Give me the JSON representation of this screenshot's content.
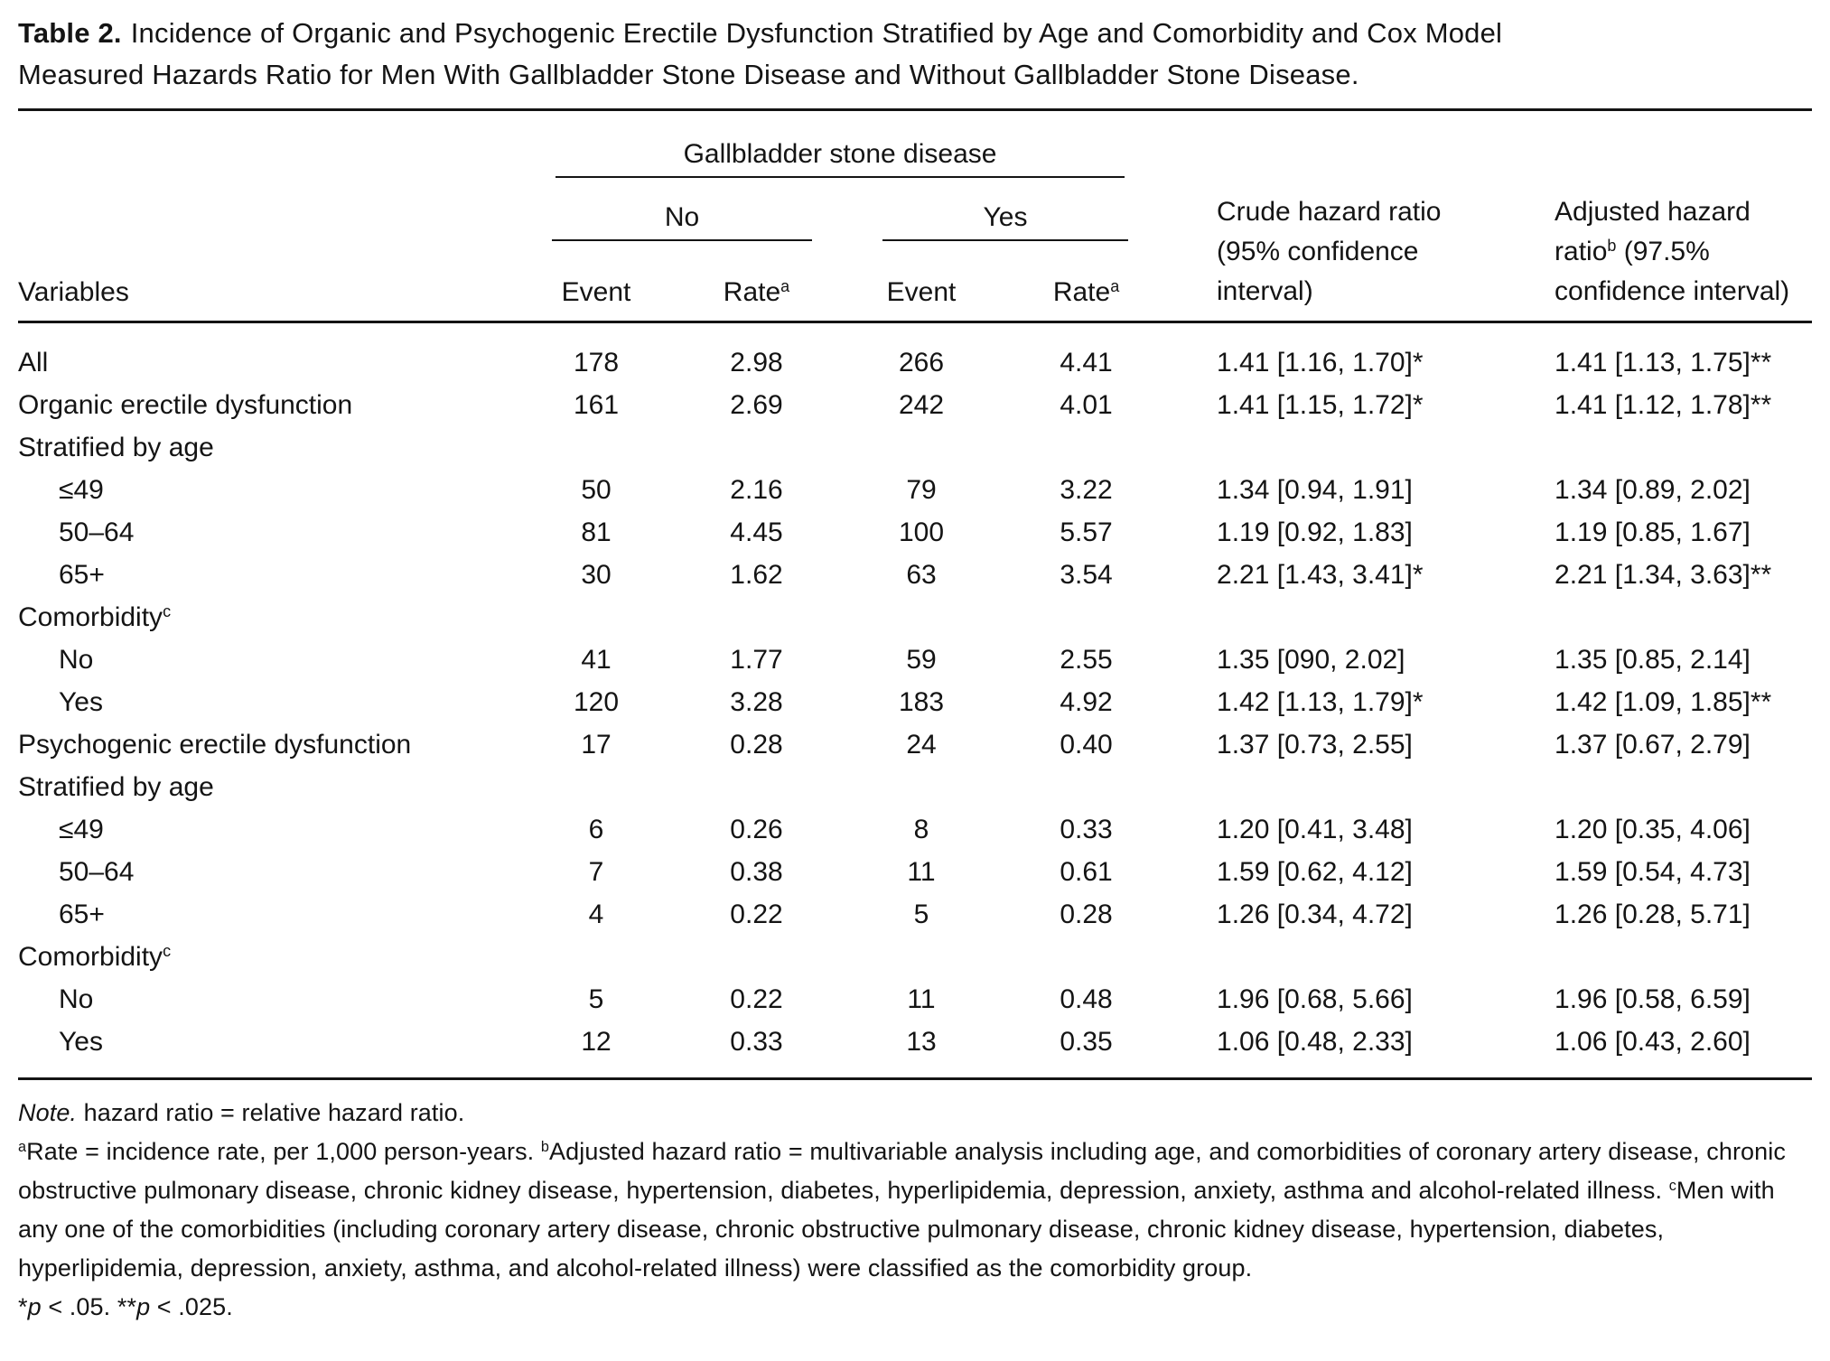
{
  "title": {
    "label": "Table 2.",
    "lines": [
      "Incidence of Organic and Psychogenic Erectile Dysfunction Stratified by Age and Comorbidity and Cox Model",
      "Measured Hazards Ratio for Men With Gallbladder Stone Disease and Without Gallbladder Stone Disease."
    ]
  },
  "table": {
    "group_header": "Gallbladder stone disease",
    "subgroups": [
      "No",
      "Yes"
    ],
    "col_headers": {
      "variables": "Variables",
      "event": "Event",
      "rate": "Rate",
      "rate_sup": "a"
    },
    "crude_header": {
      "line1": "Crude hazard ratio",
      "line2": "(95% confidence",
      "line3": "interval)"
    },
    "adjusted_header": {
      "line1": "Adjusted hazard",
      "line2_pre": "ratio",
      "line2_sup": "b",
      "line2_post": " (97.5%",
      "line3": "confidence interval)"
    },
    "rows": [
      {
        "label": "All",
        "no_event": "178",
        "no_rate": "2.98",
        "yes_event": "266",
        "yes_rate": "4.41",
        "crude": "1.41 [1.16, 1.70]*",
        "adjusted": "1.41 [1.13, 1.75]**"
      },
      {
        "label": "Organic erectile dysfunction",
        "no_event": "161",
        "no_rate": "2.69",
        "yes_event": "242",
        "yes_rate": "4.01",
        "crude": "1.41 [1.15, 1.72]*",
        "adjusted": "1.41 [1.12, 1.78]**"
      },
      {
        "label": "Stratified by age",
        "section": true
      },
      {
        "label": "≤49",
        "indent": true,
        "no_event": "50",
        "no_rate": "2.16",
        "yes_event": "79",
        "yes_rate": "3.22",
        "crude": "1.34 [0.94, 1.91]",
        "adjusted": "1.34 [0.89, 2.02]"
      },
      {
        "label": "50–64",
        "indent": true,
        "no_event": "81",
        "no_rate": "4.45",
        "yes_event": "100",
        "yes_rate": "5.57",
        "crude": "1.19 [0.92, 1.83]",
        "adjusted": "1.19 [0.85, 1.67]"
      },
      {
        "label": "65+",
        "indent": true,
        "no_event": "30",
        "no_rate": "1.62",
        "yes_event": "63",
        "yes_rate": "3.54",
        "crude": "2.21 [1.43, 3.41]*",
        "adjusted": "2.21 [1.34, 3.63]**"
      },
      {
        "label": "Comorbidity",
        "sup": "c",
        "section": true
      },
      {
        "label": "No",
        "indent": true,
        "no_event": "41",
        "no_rate": "1.77",
        "yes_event": "59",
        "yes_rate": "2.55",
        "crude": "1.35 [090, 2.02]",
        "adjusted": "1.35 [0.85, 2.14]"
      },
      {
        "label": "Yes",
        "indent": true,
        "no_event": "120",
        "no_rate": "3.28",
        "yes_event": "183",
        "yes_rate": "4.92",
        "crude": "1.42 [1.13, 1.79]*",
        "adjusted": "1.42 [1.09, 1.85]**"
      },
      {
        "label": "Psychogenic erectile dysfunction",
        "no_event": "17",
        "no_rate": "0.28",
        "yes_event": "24",
        "yes_rate": "0.40",
        "crude": "1.37 [0.73, 2.55]",
        "adjusted": "1.37 [0.67, 2.79]"
      },
      {
        "label": "Stratified by age",
        "section": true
      },
      {
        "label": "≤49",
        "indent": true,
        "no_event": "6",
        "no_rate": "0.26",
        "yes_event": "8",
        "yes_rate": "0.33",
        "crude": "1.20 [0.41, 3.48]",
        "adjusted": "1.20 [0.35, 4.06]"
      },
      {
        "label": "50–64",
        "indent": true,
        "no_event": "7",
        "no_rate": "0.38",
        "yes_event": "11",
        "yes_rate": "0.61",
        "crude": "1.59 [0.62, 4.12]",
        "adjusted": "1.59 [0.54, 4.73]"
      },
      {
        "label": "65+",
        "indent": true,
        "no_event": "4",
        "no_rate": "0.22",
        "yes_event": "5",
        "yes_rate": "0.28",
        "crude": "1.26 [0.34, 4.72]",
        "adjusted": "1.26 [0.28, 5.71]"
      },
      {
        "label": "Comorbidity",
        "sup": "c",
        "section": true
      },
      {
        "label": "No",
        "indent": true,
        "no_event": "5",
        "no_rate": "0.22",
        "yes_event": "11",
        "yes_rate": "0.48",
        "crude": "1.96 [0.68, 5.66]",
        "adjusted": "1.96 [0.58, 6.59]"
      },
      {
        "label": "Yes",
        "indent": true,
        "no_event": "12",
        "no_rate": "0.33",
        "yes_event": "13",
        "yes_rate": "0.35",
        "crude": "1.06 [0.48, 2.33]",
        "adjusted": "1.06 [0.43, 2.60]"
      }
    ]
  },
  "footnotes": {
    "note_lead": "Note.",
    "note_text": " hazard ratio = relative hazard ratio.",
    "segments": [
      {
        "sup": "a",
        "text": "Rate = incidence rate, per 1,000 person-years. "
      },
      {
        "sup": "b",
        "text": "Adjusted hazard ratio = multivariable analysis including age, and comorbidities of coronary artery disease, chronic obstructive pulmonary disease, chronic kidney disease, hypertension, diabetes, hyperlipidemia, depression, anxiety, asthma and alcohol-related illness. "
      },
      {
        "sup": "c",
        "text": "Men with any one of the comorbidities (including coronary artery disease, chronic obstructive pulmonary disease, chronic kidney disease, hypertension, diabetes, hyperlipidemia, depression, anxiety, asthma, and alcohol-related illness) were classified as the comorbidity group."
      }
    ],
    "significance": [
      {
        "stars": "*",
        "var": "p",
        "tail": " < .05. "
      },
      {
        "stars": "**",
        "var": "p",
        "tail": " < .025."
      }
    ]
  }
}
